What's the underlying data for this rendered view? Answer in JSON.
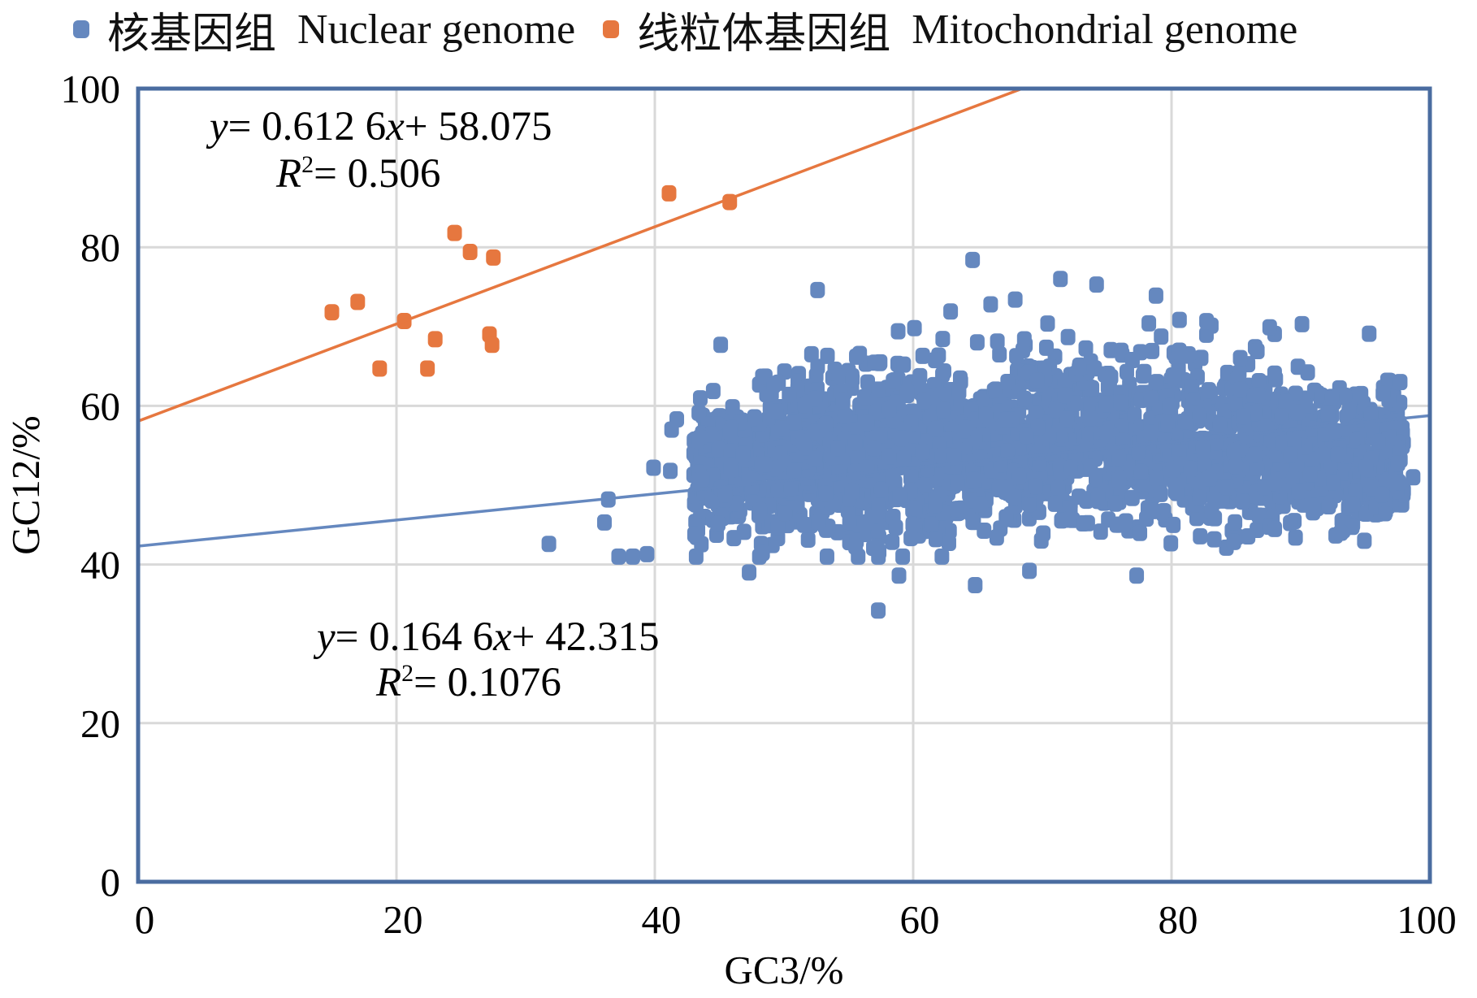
{
  "chart_data": {
    "type": "scatter",
    "title": "",
    "xlabel": "GC3/%",
    "ylabel": "GC12/%",
    "xlim": [
      0,
      100
    ],
    "ylim": [
      0,
      100
    ],
    "x_ticks": [
      "0",
      "20",
      "40",
      "60",
      "80",
      "100"
    ],
    "y_ticks": [
      "0",
      "20",
      "40",
      "60",
      "80",
      "100"
    ],
    "grid": true,
    "legend_position": "top",
    "colors": {
      "nuclear": "#6588bf",
      "mitochondrial": "#e6773f",
      "axis": "#4a6ca0",
      "grid": "#d9d9d9"
    },
    "series": [
      {
        "name": "核基因组 Nuclear genome",
        "legend_cn": "核基因组",
        "legend_en": "Nuclear genome",
        "color": "#6588bf",
        "trendline": {
          "slope": 0.1646,
          "intercept": 42.315,
          "equation_prefix": "y",
          "equation_body": "= 0.164 6",
          "equation_x": "x",
          "equation_suffix": "+ 42.315",
          "r2_label": "R",
          "r2_value": "= 0.1076"
        },
        "points_outliers": [
          [
            31.8,
            42.6
          ],
          [
            36.1,
            45.3
          ],
          [
            36.4,
            48.2
          ],
          [
            37.2,
            41.0
          ],
          [
            38.3,
            41.0
          ],
          [
            39.4,
            41.3
          ],
          [
            39.9,
            52.2
          ],
          [
            41.2,
            51.8
          ],
          [
            41.3,
            57.0
          ],
          [
            41.7,
            58.3
          ],
          [
            43.2,
            41.0
          ],
          [
            43.5,
            56.0
          ],
          [
            45.1,
            67.7
          ],
          [
            47.3,
            39.0
          ],
          [
            49.2,
            62.6
          ],
          [
            52.6,
            74.6
          ],
          [
            55.6,
            66.2
          ],
          [
            57.3,
            34.2
          ],
          [
            57.4,
            65.4
          ],
          [
            58.9,
            38.6
          ],
          [
            60.1,
            69.8
          ],
          [
            62.9,
            71.9
          ],
          [
            64.6,
            78.4
          ],
          [
            64.8,
            37.4
          ],
          [
            66.0,
            72.8
          ],
          [
            67.9,
            73.4
          ],
          [
            69.0,
            39.2
          ],
          [
            71.4,
            76.0
          ],
          [
            74.2,
            75.3
          ],
          [
            77.3,
            38.6
          ],
          [
            78.8,
            73.9
          ],
          [
            87.6,
            69.9
          ],
          [
            89.6,
            43.4
          ],
          [
            90.1,
            70.3
          ],
          [
            91.0,
            47.4
          ],
          [
            93.1,
            44.0
          ],
          [
            95.3,
            69.1
          ],
          [
            96.3,
            48.8
          ],
          [
            97.7,
            63.0
          ],
          [
            98.7,
            51.0
          ]
        ],
        "cloud": {
          "x_range": [
            40,
            98
          ],
          "y_center_at_x60": 52,
          "y_spread": 7,
          "count": 2600
        }
      },
      {
        "name": "线粒体基因组 Mitochondrial genome",
        "legend_cn": "线粒体基因组",
        "legend_en": "Mitochondrial genome",
        "color": "#e6773f",
        "trendline": {
          "slope": 0.6126,
          "intercept": 58.075,
          "equation_prefix": "y",
          "equation_body": "= 0.612 6",
          "equation_x": "x",
          "equation_suffix": "+ 58.075",
          "r2_label": "R",
          "r2_value": "= 0.506"
        },
        "points": [
          [
            15.0,
            71.8
          ],
          [
            17.0,
            73.1
          ],
          [
            18.7,
            64.7
          ],
          [
            20.6,
            70.7
          ],
          [
            22.4,
            64.7
          ],
          [
            23.0,
            68.4
          ],
          [
            24.5,
            81.8
          ],
          [
            25.7,
            79.4
          ],
          [
            27.2,
            69.0
          ],
          [
            27.4,
            67.7
          ],
          [
            27.5,
            78.7
          ],
          [
            41.1,
            86.8
          ],
          [
            45.8,
            85.7
          ]
        ]
      }
    ]
  }
}
